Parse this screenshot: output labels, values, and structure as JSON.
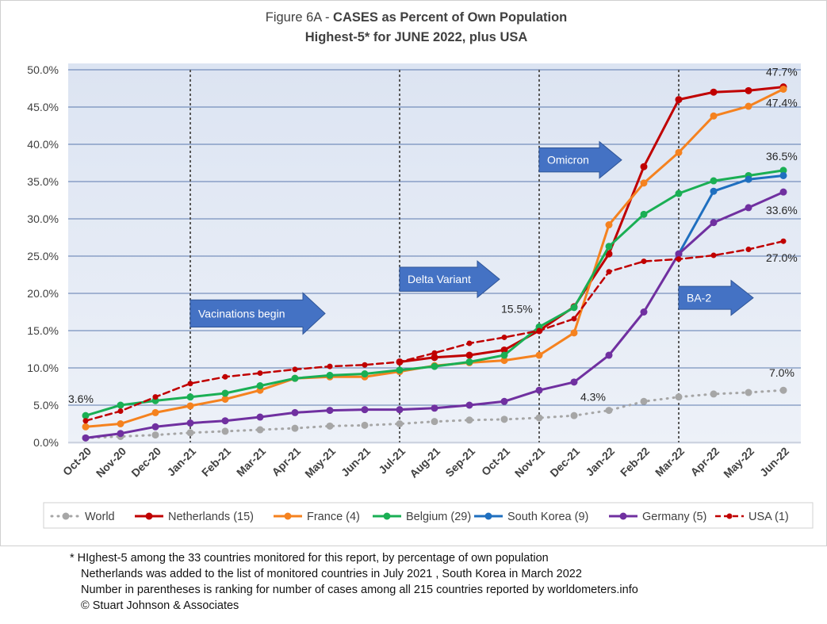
{
  "chart_data": {
    "type": "line",
    "title_prefix": "Figure 6A - ",
    "title_bold": "CASES as Percent of Own Population",
    "subtitle": "Highest-5* for JUNE 2022, plus USA",
    "categories": [
      "Oct-20",
      "Nov-20",
      "Dec-20",
      "Jan-21",
      "Feb-21",
      "Mar-21",
      "Apr-21",
      "May-21",
      "Jun-21",
      "Jul-21",
      "Aug-21",
      "Sep-21",
      "Oct-21",
      "Nov-21",
      "Dec-21",
      "Jan-22",
      "Feb-22",
      "Mar-22",
      "Apr-22",
      "May-22",
      "Jun-22"
    ],
    "ylim": [
      0,
      50
    ],
    "yticks": [
      "0.0%",
      "5.0%",
      "10.0%",
      "15.0%",
      "20.0%",
      "25.0%",
      "30.0%",
      "35.0%",
      "40.0%",
      "45.0%",
      "50.0%"
    ],
    "grid": true,
    "legend_position": "bottom",
    "series": [
      {
        "name": "World",
        "color": "#a6a6a6",
        "style": "dotted",
        "values": [
          0.6,
          0.8,
          1.0,
          1.3,
          1.5,
          1.7,
          1.9,
          2.2,
          2.3,
          2.5,
          2.8,
          3.0,
          3.1,
          3.3,
          3.6,
          4.3,
          5.5,
          6.1,
          6.5,
          6.7,
          7.0
        ]
      },
      {
        "name": "Netherlands (15)",
        "color": "#c00000",
        "style": "solid",
        "values": [
          null,
          null,
          null,
          null,
          null,
          null,
          null,
          null,
          null,
          10.8,
          11.4,
          11.7,
          12.4,
          15.0,
          18.2,
          25.3,
          37.0,
          46.0,
          47.0,
          47.2,
          47.7
        ]
      },
      {
        "name": "France (4)",
        "color": "#f5821f",
        "style": "solid",
        "values": [
          2.1,
          2.5,
          4.0,
          4.9,
          5.8,
          7.0,
          8.6,
          8.8,
          8.8,
          9.5,
          10.3,
          10.7,
          11.0,
          11.7,
          14.7,
          29.2,
          34.8,
          38.9,
          43.8,
          45.1,
          47.4
        ]
      },
      {
        "name": "Belgium (29)",
        "color": "#1aaf54",
        "style": "solid",
        "values": [
          3.6,
          5.0,
          5.6,
          6.1,
          6.6,
          7.6,
          8.6,
          9.0,
          9.2,
          9.7,
          10.2,
          10.8,
          11.7,
          15.5,
          18.1,
          26.3,
          30.6,
          33.4,
          35.1,
          35.8,
          36.5
        ]
      },
      {
        "name": "South Korea (9)",
        "color": "#1f6fbf",
        "style": "solid",
        "values": [
          null,
          null,
          null,
          null,
          null,
          null,
          null,
          null,
          null,
          null,
          null,
          null,
          null,
          null,
          null,
          null,
          null,
          25.3,
          33.7,
          35.3,
          35.8
        ]
      },
      {
        "name": "Germany (5)",
        "color": "#7030a0",
        "style": "solid",
        "values": [
          0.6,
          1.2,
          2.1,
          2.6,
          2.9,
          3.4,
          4.0,
          4.3,
          4.4,
          4.4,
          4.6,
          5.0,
          5.5,
          7.0,
          8.1,
          11.7,
          17.5,
          25.3,
          29.5,
          31.5,
          33.6
        ]
      },
      {
        "name": "USA (1)",
        "color": "#c00000",
        "style": "dashed",
        "values": [
          2.9,
          4.2,
          6.1,
          7.9,
          8.8,
          9.3,
          9.8,
          10.2,
          10.4,
          10.8,
          12.0,
          13.3,
          14.1,
          15.0,
          16.6,
          22.9,
          24.3,
          24.6,
          25.1,
          25.9,
          27.0
        ]
      }
    ],
    "data_labels": [
      {
        "text": "3.6%",
        "x": "Oct-20"
      },
      {
        "text": "15.5%",
        "x": "Nov-21"
      },
      {
        "text": "4.3%",
        "x": "Jan-22"
      },
      {
        "text": "47.7%",
        "x": "Jun-22"
      },
      {
        "text": "47.4%",
        "x": "Jun-22"
      },
      {
        "text": "36.5%",
        "x": "Jun-22"
      },
      {
        "text": "33.6%",
        "x": "Jun-22"
      },
      {
        "text": "27.0%",
        "x": "Jun-22"
      },
      {
        "text": "7.0%",
        "x": "Jun-22"
      }
    ],
    "markers": [
      {
        "x": "Jan-21"
      },
      {
        "x": "Jul-21"
      },
      {
        "x": "Nov-21"
      },
      {
        "x": "Mar-22"
      }
    ],
    "annotations": [
      {
        "text": "Vacinations begin",
        "x": "Jan-21"
      },
      {
        "text": "Delta Variant",
        "x": "Jul-21"
      },
      {
        "text": "Omicron",
        "x": "Nov-21"
      },
      {
        "text": "BA-2",
        "x": "Mar-22"
      }
    ]
  },
  "footnote": [
    "* HIghest-5 among the 33 countries monitored for this report, by percentage of own population",
    "Netherlands was added to the list of monitored countries in July 2021 , South Korea in March 2022",
    "Number in parentheses is ranking for number of cases among all 215 countries reported by worldometers.info",
    "© Stuart Johnson & Associates"
  ]
}
